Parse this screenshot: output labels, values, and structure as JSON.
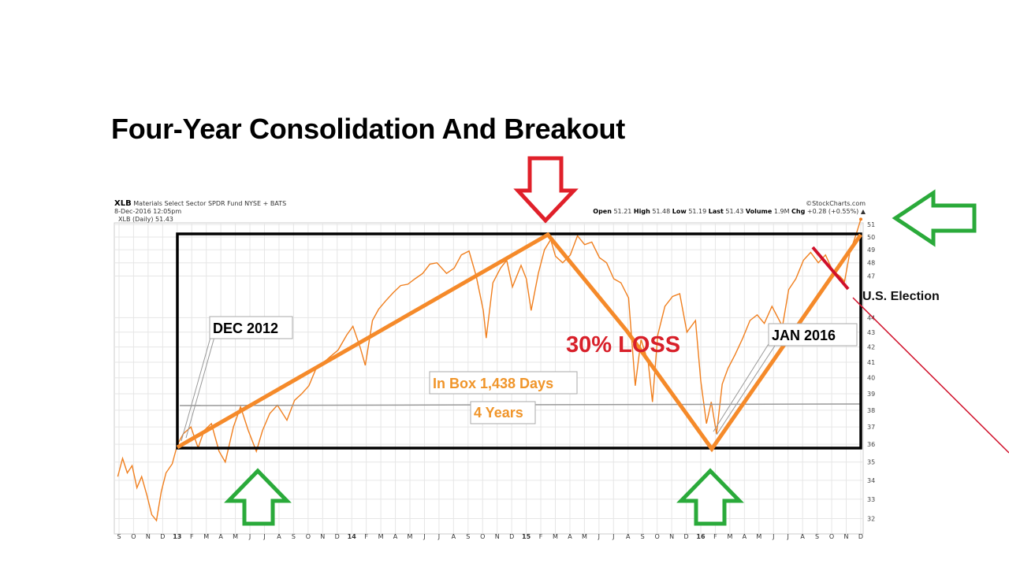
{
  "title": "Four-Year Consolidation And Breakout",
  "header": {
    "symbol": "XLB",
    "name": "Materials Select Sector SPDR Fund",
    "exchange": "NYSE + BATS",
    "datetime": "8-Dec-2016 12:05pm",
    "legend": "XLB (Daily) 51.43",
    "source": "©StockCharts.com",
    "quote": {
      "open_label": "Open",
      "open": "51.21",
      "high_label": "High",
      "high": "51.48",
      "low_label": "Low",
      "low": "51.19",
      "last_label": "Last",
      "last": "51.43",
      "volume_label": "Volume",
      "volume": "1.9M",
      "chg_label": "Chg",
      "chg": "+0.28 (+0.55%)"
    }
  },
  "annotations": {
    "dec2012": "DEC 2012",
    "jan2016": "JAN 2016",
    "in_box": "In Box 1,438 Days",
    "years": "4 Years",
    "loss": "30% LOSS",
    "election": "U.S. Election"
  },
  "colors": {
    "price": "#f07f1e",
    "trend": "#f58a2a",
    "box": "#000000",
    "down_arrow": "#e0202a",
    "up_arrow": "#2aaa3a",
    "election_line": "#d0102a"
  },
  "chart_data": {
    "type": "line",
    "yscale": "log",
    "ylim": [
      31.5,
      51.6
    ],
    "xlim": [
      "2012-09-01",
      "2016-12-08"
    ],
    "grid": true,
    "yticks": [
      32,
      33,
      34,
      35,
      36,
      37,
      38,
      39,
      40,
      41,
      42,
      43,
      44,
      47,
      48,
      49,
      50,
      51
    ],
    "xticks": [
      "S",
      "O",
      "N",
      "D",
      "13",
      "F",
      "M",
      "A",
      "M",
      "J",
      "J",
      "A",
      "S",
      "O",
      "N",
      "D",
      "14",
      "F",
      "M",
      "A",
      "M",
      "J",
      "J",
      "A",
      "S",
      "O",
      "N",
      "D",
      "15",
      "F",
      "M",
      "A",
      "M",
      "J",
      "J",
      "A",
      "S",
      "O",
      "N",
      "D",
      "16",
      "F",
      "M",
      "A",
      "M",
      "J",
      "J",
      "A",
      "S",
      "O",
      "N",
      "D"
    ],
    "series": [
      {
        "name": "XLB (Daily)",
        "points": [
          [
            "2012-09-05",
            34.2
          ],
          [
            "2012-09-15",
            35.2
          ],
          [
            "2012-09-25",
            34.4
          ],
          [
            "2012-10-05",
            34.8
          ],
          [
            "2012-10-15",
            33.6
          ],
          [
            "2012-10-25",
            34.2
          ],
          [
            "2012-11-05",
            33.2
          ],
          [
            "2012-11-15",
            32.2
          ],
          [
            "2012-11-25",
            31.9
          ],
          [
            "2012-12-05",
            33.4
          ],
          [
            "2012-12-15",
            34.4
          ],
          [
            "2012-12-28",
            34.9
          ],
          [
            "2013-01-08",
            36.0
          ],
          [
            "2013-01-20",
            36.6
          ],
          [
            "2013-02-05",
            37.0
          ],
          [
            "2013-02-20",
            35.8
          ],
          [
            "2013-03-05",
            36.8
          ],
          [
            "2013-03-20",
            37.2
          ],
          [
            "2013-04-05",
            35.6
          ],
          [
            "2013-04-18",
            35.0
          ],
          [
            "2013-05-05",
            37.0
          ],
          [
            "2013-05-20",
            38.2
          ],
          [
            "2013-06-05",
            36.8
          ],
          [
            "2013-06-22",
            35.6
          ],
          [
            "2013-07-05",
            36.8
          ],
          [
            "2013-07-20",
            37.8
          ],
          [
            "2013-08-05",
            38.3
          ],
          [
            "2013-08-25",
            37.4
          ],
          [
            "2013-09-10",
            38.6
          ],
          [
            "2013-09-25",
            39.0
          ],
          [
            "2013-10-10",
            39.5
          ],
          [
            "2013-10-25",
            40.6
          ],
          [
            "2013-11-10",
            41.0
          ],
          [
            "2013-11-25",
            41.4
          ],
          [
            "2013-12-10",
            41.8
          ],
          [
            "2013-12-28",
            42.8
          ],
          [
            "2014-01-10",
            43.4
          ],
          [
            "2014-01-25",
            42.0
          ],
          [
            "2014-02-05",
            40.8
          ],
          [
            "2014-02-20",
            43.8
          ],
          [
            "2014-03-05",
            44.6
          ],
          [
            "2014-03-20",
            45.2
          ],
          [
            "2014-04-05",
            45.8
          ],
          [
            "2014-04-20",
            46.3
          ],
          [
            "2014-05-05",
            46.4
          ],
          [
            "2014-05-20",
            46.8
          ],
          [
            "2014-06-05",
            47.2
          ],
          [
            "2014-06-20",
            47.9
          ],
          [
            "2014-07-05",
            48.0
          ],
          [
            "2014-07-25",
            47.2
          ],
          [
            "2014-08-10",
            47.6
          ],
          [
            "2014-08-25",
            48.6
          ],
          [
            "2014-09-10",
            48.9
          ],
          [
            "2014-09-25",
            47.0
          ],
          [
            "2014-10-10",
            44.5
          ],
          [
            "2014-10-16",
            42.6
          ],
          [
            "2014-10-30",
            46.5
          ],
          [
            "2014-11-15",
            47.6
          ],
          [
            "2014-11-28",
            48.2
          ],
          [
            "2014-12-10",
            46.2
          ],
          [
            "2014-12-28",
            47.8
          ],
          [
            "2015-01-08",
            46.8
          ],
          [
            "2015-01-18",
            44.5
          ],
          [
            "2015-02-02",
            47.2
          ],
          [
            "2015-02-15",
            49.0
          ],
          [
            "2015-02-28",
            49.8
          ],
          [
            "2015-03-10",
            48.5
          ],
          [
            "2015-03-25",
            48.0
          ],
          [
            "2015-04-10",
            48.6
          ],
          [
            "2015-04-25",
            50.1
          ],
          [
            "2015-05-10",
            49.4
          ],
          [
            "2015-05-25",
            49.6
          ],
          [
            "2015-06-10",
            48.4
          ],
          [
            "2015-06-25",
            48.0
          ],
          [
            "2015-07-10",
            46.8
          ],
          [
            "2015-07-25",
            46.5
          ],
          [
            "2015-08-10",
            45.4
          ],
          [
            "2015-08-24",
            39.5
          ],
          [
            "2015-09-05",
            42.5
          ],
          [
            "2015-09-20",
            41.0
          ],
          [
            "2015-09-29",
            38.5
          ],
          [
            "2015-10-10",
            42.8
          ],
          [
            "2015-10-25",
            44.8
          ],
          [
            "2015-11-10",
            45.5
          ],
          [
            "2015-11-25",
            45.7
          ],
          [
            "2015-12-10",
            43.0
          ],
          [
            "2015-12-28",
            43.8
          ],
          [
            "2016-01-08",
            39.8
          ],
          [
            "2016-01-20",
            37.2
          ],
          [
            "2016-01-30",
            38.5
          ],
          [
            "2016-02-10",
            36.6
          ],
          [
            "2016-02-22",
            39.6
          ],
          [
            "2016-03-05",
            40.6
          ],
          [
            "2016-03-20",
            41.5
          ],
          [
            "2016-04-05",
            42.6
          ],
          [
            "2016-04-20",
            43.8
          ],
          [
            "2016-05-05",
            44.2
          ],
          [
            "2016-05-20",
            43.6
          ],
          [
            "2016-06-05",
            44.8
          ],
          [
            "2016-06-27",
            43.4
          ],
          [
            "2016-07-10",
            46.0
          ],
          [
            "2016-07-25",
            46.8
          ],
          [
            "2016-08-10",
            48.2
          ],
          [
            "2016-08-25",
            48.8
          ],
          [
            "2016-09-10",
            48.0
          ],
          [
            "2016-09-25",
            48.6
          ],
          [
            "2016-10-10",
            47.4
          ],
          [
            "2016-10-25",
            47.0
          ],
          [
            "2016-11-04",
            46.6
          ],
          [
            "2016-11-15",
            48.8
          ],
          [
            "2016-11-28",
            50.2
          ],
          [
            "2016-12-08",
            51.43
          ]
        ]
      }
    ]
  }
}
